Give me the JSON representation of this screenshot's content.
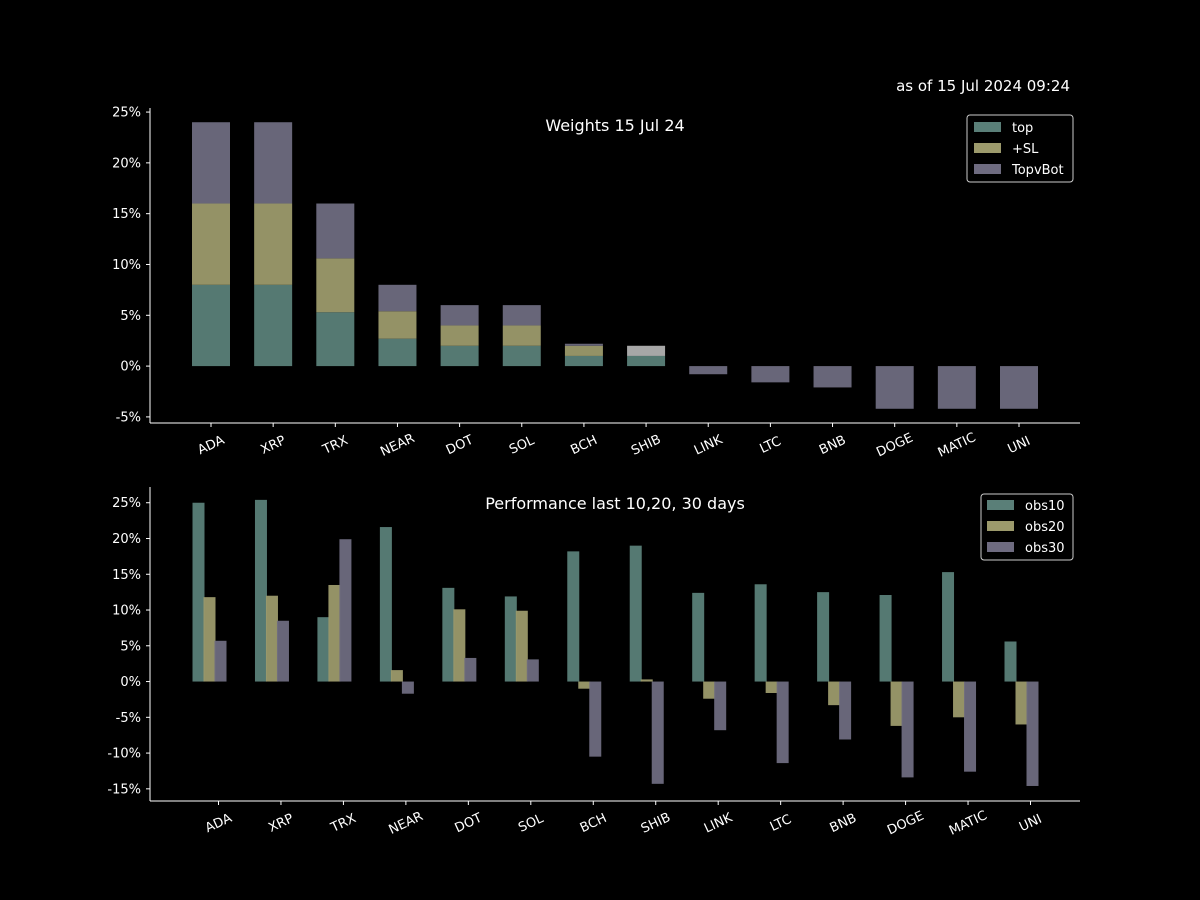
{
  "timestamp": "as of 15 Jul 2024 09:24",
  "colors": {
    "background": "#000000",
    "axis": "#ffffff",
    "top": "#5a7f78",
    "sl": "#9c9a6c",
    "topvbot": "#6e6b80",
    "shib_topvbot": "#b0b0b0",
    "obs10": "#5a7f78",
    "obs20": "#9c9a6c",
    "obs30": "#6e6b80"
  },
  "chart_data": [
    {
      "type": "bar",
      "stacked": true,
      "title": "Weights 15 Jul 24",
      "categories": [
        "ADA",
        "XRP",
        "TRX",
        "NEAR",
        "DOT",
        "SOL",
        "BCH",
        "SHIB",
        "LINK",
        "LTC",
        "BNB",
        "DOGE",
        "MATIC",
        "UNI"
      ],
      "series": [
        {
          "name": "top",
          "values": [
            8.0,
            8.0,
            5.3,
            2.7,
            2.0,
            2.0,
            1.0,
            1.0,
            0,
            0,
            0,
            0,
            0,
            0
          ]
        },
        {
          "name": "+SL",
          "values": [
            8.0,
            8.0,
            5.3,
            2.7,
            2.0,
            2.0,
            1.0,
            0,
            0,
            0,
            0,
            0,
            0,
            0
          ]
        },
        {
          "name": "TopvBot",
          "values": [
            8.0,
            8.0,
            5.4,
            2.6,
            2.0,
            2.0,
            0.2,
            1.0,
            -0.8,
            -1.6,
            -2.1,
            -4.2,
            -4.2,
            -4.2
          ]
        }
      ],
      "yticks": [
        "-5%",
        "0%",
        "5%",
        "10%",
        "15%",
        "20%",
        "25%"
      ],
      "ylim": [
        -5.6,
        25.4
      ],
      "legend": "top-right"
    },
    {
      "type": "bar",
      "title": "Performance last 10,20, 30 days",
      "categories": [
        "ADA",
        "XRP",
        "TRX",
        "NEAR",
        "DOT",
        "SOL",
        "BCH",
        "SHIB",
        "LINK",
        "LTC",
        "BNB",
        "DOGE",
        "MATIC",
        "UNI"
      ],
      "series": [
        {
          "name": "obs10",
          "values": [
            25.0,
            25.4,
            9.0,
            21.6,
            13.1,
            11.9,
            18.2,
            19.0,
            12.4,
            13.6,
            12.5,
            12.1,
            15.3,
            5.6
          ]
        },
        {
          "name": "obs20",
          "values": [
            11.8,
            12.0,
            13.5,
            1.6,
            10.1,
            9.9,
            -1.0,
            0.3,
            -2.4,
            -1.6,
            -3.3,
            -6.2,
            -5.0,
            -6.0
          ]
        },
        {
          "name": "obs30",
          "values": [
            5.7,
            8.5,
            19.9,
            -1.7,
            3.3,
            3.1,
            -10.5,
            -14.3,
            -6.8,
            -11.4,
            -8.1,
            -13.4,
            -12.6,
            -14.6
          ]
        }
      ],
      "yticks": [
        "-15%",
        "-10%",
        "-5%",
        "0%",
        "5%",
        "10%",
        "15%",
        "20%",
        "25%"
      ],
      "ylim": [
        -16.7,
        27.2
      ],
      "legend": "top-right"
    }
  ]
}
